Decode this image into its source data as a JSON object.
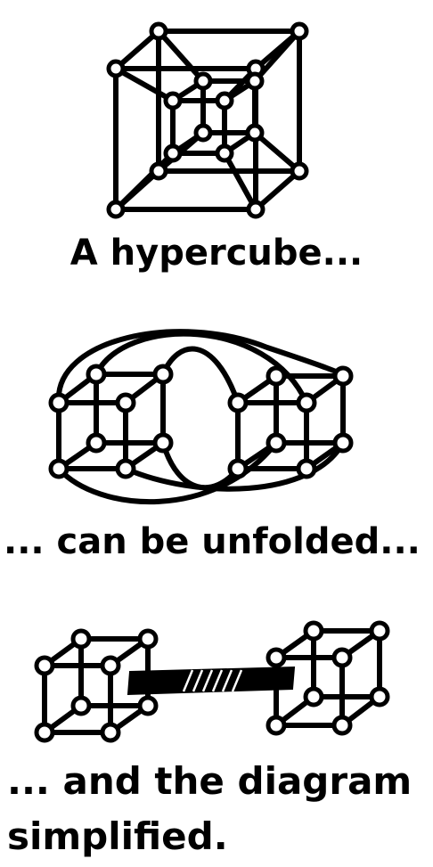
{
  "captions": {
    "hypercube": "A hypercube...",
    "unfolded": "... can be unfolded...",
    "simplified_line1": "... and the diagram",
    "simplified_line2": "simplified."
  },
  "colors": {
    "ink": "#000000",
    "background": "#ffffff"
  }
}
